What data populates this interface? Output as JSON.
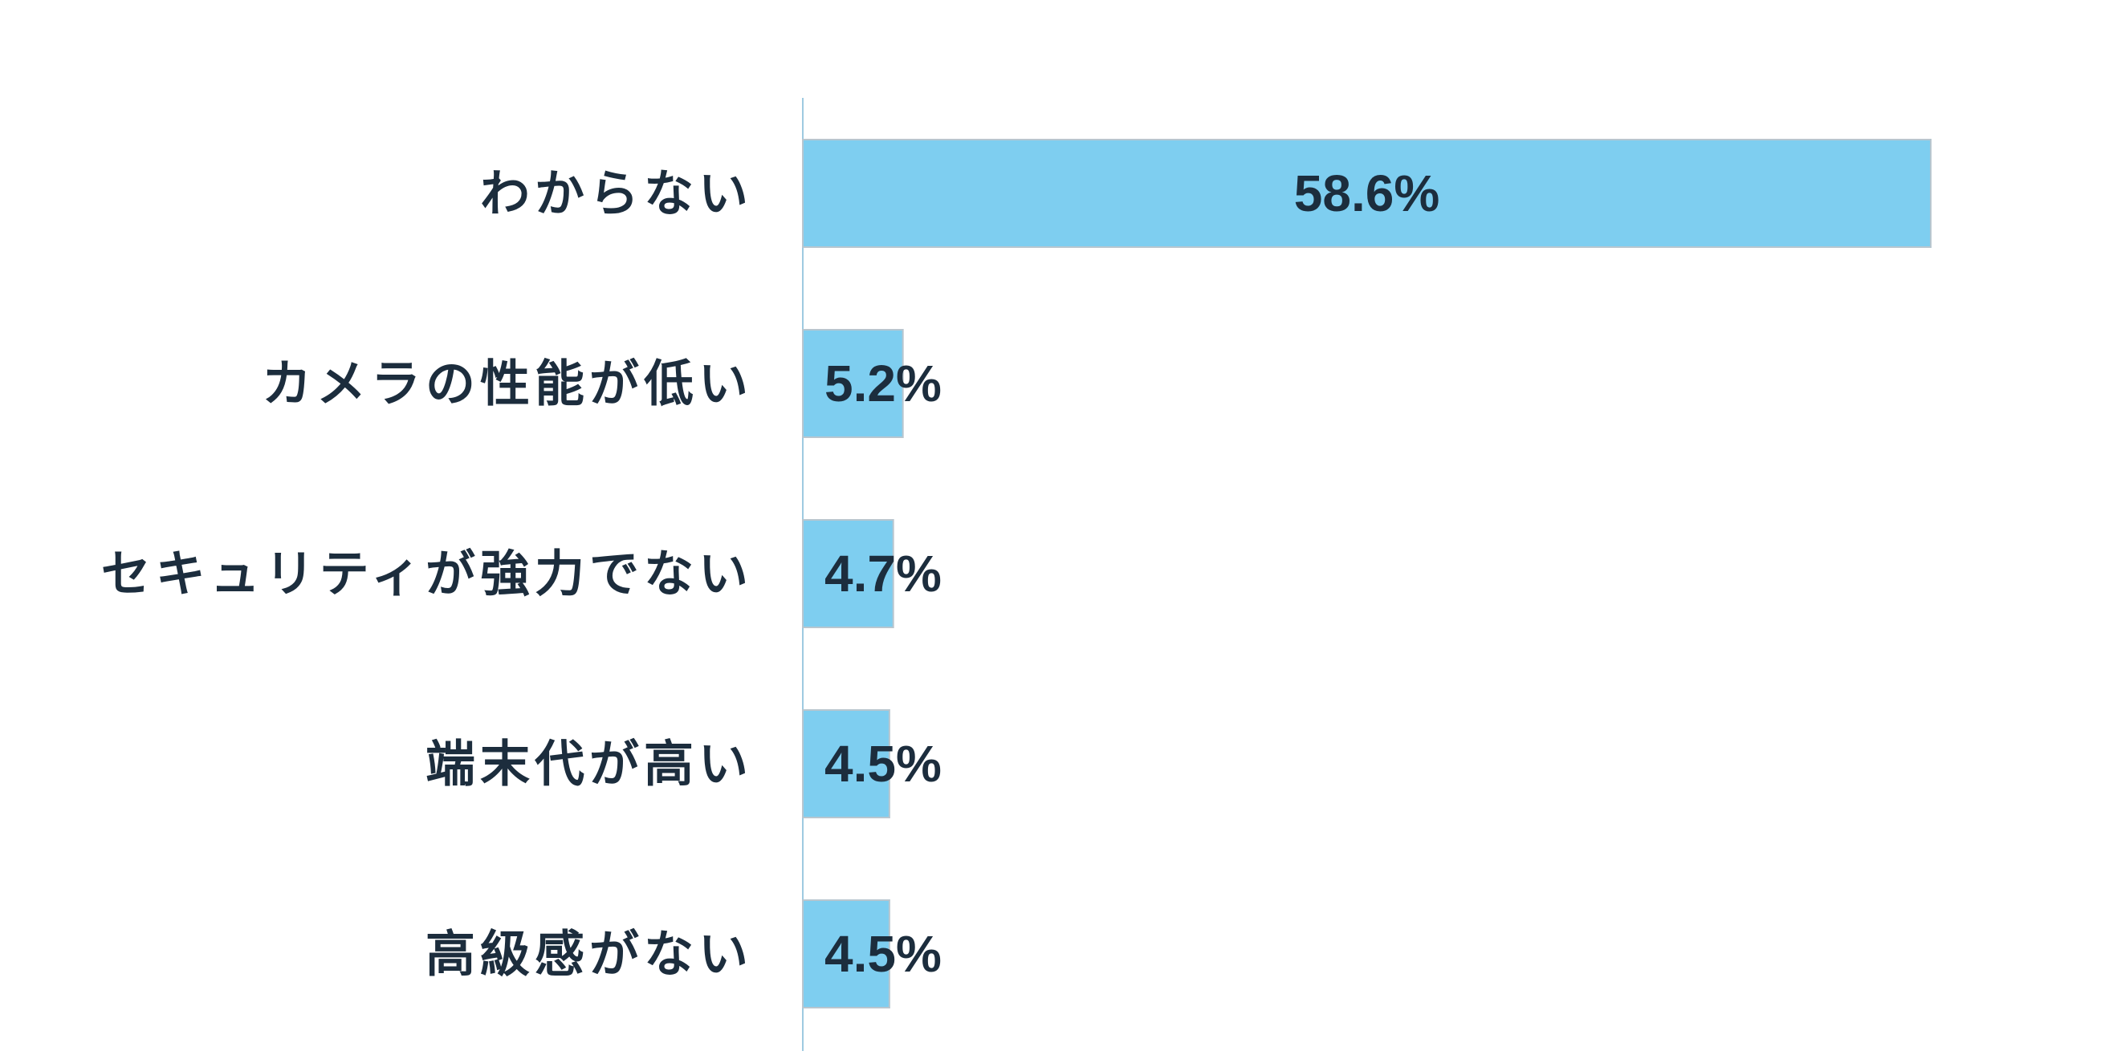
{
  "chart_data": {
    "type": "bar",
    "orientation": "horizontal",
    "categories": [
      "わからない",
      "カメラの性能が低い",
      "セキュリティが強力でない",
      "端末代が高い",
      "高級感がない"
    ],
    "values": [
      58.6,
      5.2,
      4.7,
      4.5,
      4.5
    ],
    "value_labels": [
      "58.6%",
      "5.2%",
      "4.7%",
      "4.5%",
      "4.5%"
    ],
    "title": "",
    "xlabel": "",
    "ylabel": "",
    "xlim": [
      0,
      65
    ],
    "grid": false,
    "legend": "none",
    "colors": {
      "bar": "#7ecef0",
      "bar_edge": "#b8c6cf",
      "axis": "#9ecae1",
      "text": "#1c2d3d"
    }
  }
}
